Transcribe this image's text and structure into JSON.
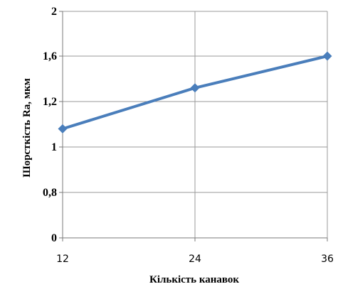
{
  "chart_data": {
    "type": "line",
    "xlabel": "Кількість канавок",
    "ylabel": "Шорсткість  Ra, мкм",
    "x_ticks": [
      "12",
      "24",
      "36"
    ],
    "y_ticks": [
      "0",
      "0,8",
      "1",
      "1,2",
      "1,6",
      "2"
    ],
    "grid": true,
    "series": [
      {
        "x": [
          12,
          24,
          36
        ],
        "y": [
          1.08,
          1.32,
          1.6
        ],
        "color": "#4a7ebb"
      }
    ]
  }
}
